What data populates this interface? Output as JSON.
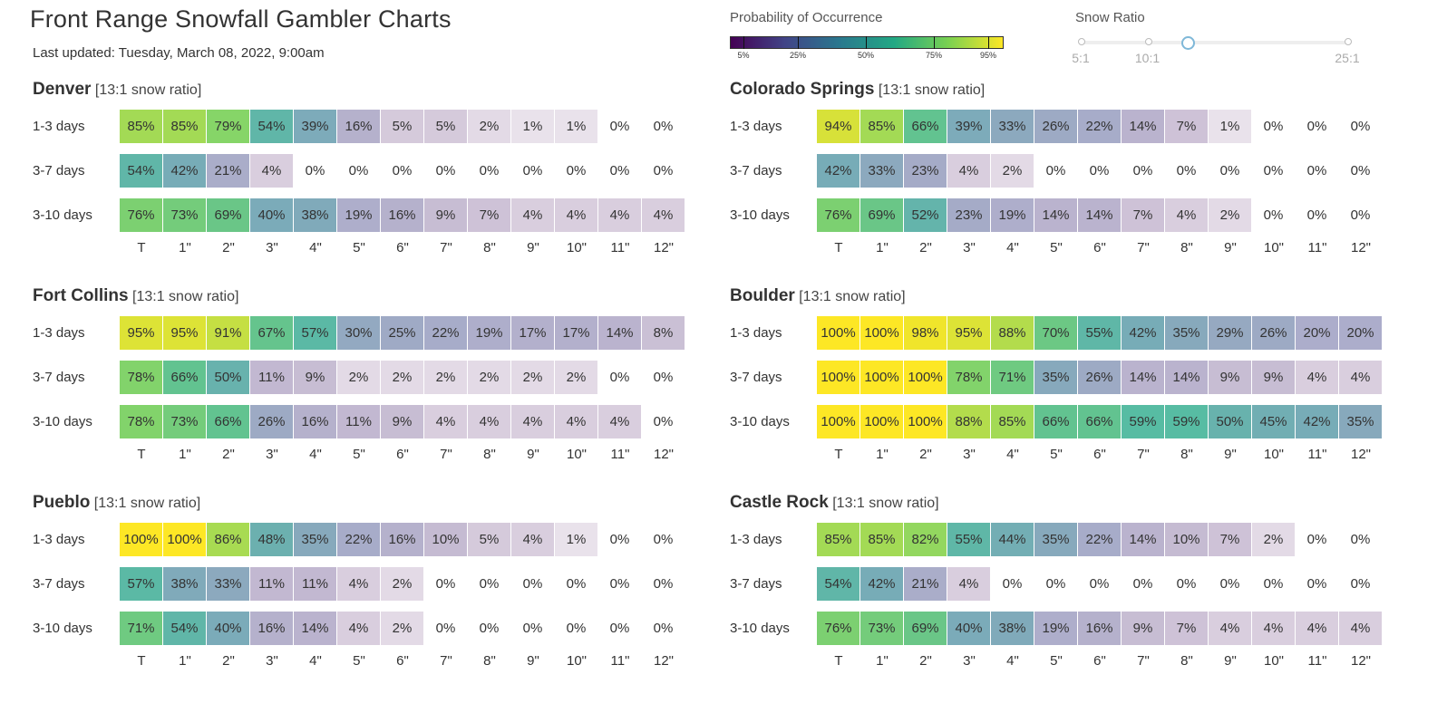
{
  "title": "Front Range Snowfall Gambler Charts",
  "last_updated": "Last updated: Tuesday, March 08, 2022, 9:00am",
  "legend": {
    "title": "Probability of Occurrence",
    "ticks": [
      "5%",
      "25%",
      "50%",
      "75%",
      "95%"
    ],
    "colormap": [
      "#440154",
      "#414487",
      "#2a788e",
      "#22a884",
      "#7ad151",
      "#fde725"
    ]
  },
  "snow_ratio": {
    "title": "Snow Ratio",
    "labels": [
      "5:1",
      "10:1",
      "25:1"
    ],
    "selected": "13:1",
    "min": 5,
    "max": 25
  },
  "chart_data": {
    "type": "heatmap",
    "title": "Front Range Snowfall Gambler Charts",
    "row_labels": [
      "1-3 days",
      "3-7 days",
      "3-10 days"
    ],
    "col_labels": [
      "T",
      "1\"",
      "2\"",
      "3\"",
      "4\"",
      "5\"",
      "6\"",
      "7\"",
      "8\"",
      "9\"",
      "10\"",
      "11\"",
      "12\""
    ],
    "unit": "%",
    "panels": [
      {
        "city": "Denver",
        "ratio_label": "[13:1 snow ratio]",
        "values": [
          [
            85,
            85,
            79,
            54,
            39,
            16,
            5,
            5,
            2,
            1,
            1,
            0,
            0
          ],
          [
            54,
            42,
            21,
            4,
            0,
            0,
            0,
            0,
            0,
            0,
            0,
            0,
            0
          ],
          [
            76,
            73,
            69,
            40,
            38,
            19,
            16,
            9,
            7,
            4,
            4,
            4,
            4
          ]
        ]
      },
      {
        "city": "Colorado Springs",
        "ratio_label": "[13:1 snow ratio]",
        "values": [
          [
            94,
            85,
            66,
            39,
            33,
            26,
            22,
            14,
            7,
            1,
            0,
            0,
            0
          ],
          [
            42,
            33,
            23,
            4,
            2,
            0,
            0,
            0,
            0,
            0,
            0,
            0,
            0
          ],
          [
            76,
            69,
            52,
            23,
            19,
            14,
            14,
            7,
            4,
            2,
            0,
            0,
            0
          ]
        ]
      },
      {
        "city": "Fort Collins",
        "ratio_label": "[13:1 snow ratio]",
        "values": [
          [
            95,
            95,
            91,
            67,
            57,
            30,
            25,
            22,
            19,
            17,
            17,
            14,
            8
          ],
          [
            78,
            66,
            50,
            11,
            9,
            2,
            2,
            2,
            2,
            2,
            2,
            0,
            0
          ],
          [
            78,
            73,
            66,
            26,
            16,
            11,
            9,
            4,
            4,
            4,
            4,
            4,
            0
          ]
        ]
      },
      {
        "city": "Boulder",
        "ratio_label": "[13:1 snow ratio]",
        "values": [
          [
            100,
            100,
            98,
            95,
            88,
            70,
            55,
            42,
            35,
            29,
            26,
            20,
            20
          ],
          [
            100,
            100,
            100,
            78,
            71,
            35,
            26,
            14,
            14,
            9,
            9,
            4,
            4
          ],
          [
            100,
            100,
            100,
            88,
            85,
            66,
            66,
            59,
            59,
            50,
            45,
            42,
            35
          ]
        ]
      },
      {
        "city": "Pueblo",
        "ratio_label": "[13:1 snow ratio]",
        "values": [
          [
            100,
            100,
            86,
            48,
            35,
            22,
            16,
            10,
            5,
            4,
            1,
            0,
            0
          ],
          [
            57,
            38,
            33,
            11,
            11,
            4,
            2,
            0,
            0,
            0,
            0,
            0,
            0
          ],
          [
            71,
            54,
            40,
            16,
            14,
            4,
            2,
            0,
            0,
            0,
            0,
            0,
            0
          ]
        ]
      },
      {
        "city": "Castle Rock",
        "ratio_label": "[13:1 snow ratio]",
        "values": [
          [
            85,
            85,
            82,
            55,
            44,
            35,
            22,
            14,
            10,
            7,
            2,
            0,
            0
          ],
          [
            54,
            42,
            21,
            4,
            0,
            0,
            0,
            0,
            0,
            0,
            0,
            0,
            0
          ],
          [
            76,
            73,
            69,
            40,
            38,
            19,
            16,
            9,
            7,
            4,
            4,
            4,
            4
          ]
        ]
      }
    ]
  }
}
